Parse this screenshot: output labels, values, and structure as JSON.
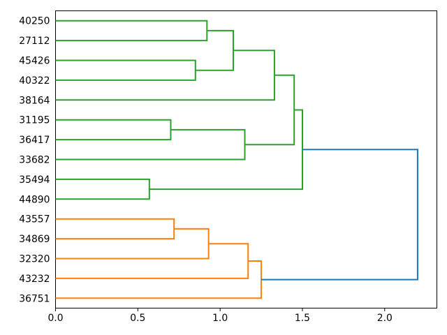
{
  "figure": {
    "background": "#ffffff",
    "title": ""
  },
  "chart_data": {
    "type": "dendrogram",
    "orientation": "right",
    "title": "",
    "xlabel": "",
    "ylabel": "",
    "xlim": [
      0,
      2.317
    ],
    "leaf_axis_range": [
      0,
      150
    ],
    "grid": false,
    "x_ticks": [
      {
        "value": 0.0,
        "label": "0.0"
      },
      {
        "value": 0.5,
        "label": "0.5"
      },
      {
        "value": 1.0,
        "label": "1.0"
      },
      {
        "value": 1.5,
        "label": "1.5"
      },
      {
        "value": 2.0,
        "label": "2.0"
      }
    ],
    "leaves": [
      {
        "label": "40250",
        "position": 145
      },
      {
        "label": "27112",
        "position": 135
      },
      {
        "label": "45426",
        "position": 125
      },
      {
        "label": "40322",
        "position": 115
      },
      {
        "label": "38164",
        "position": 105
      },
      {
        "label": "31195",
        "position": 95
      },
      {
        "label": "36417",
        "position": 85
      },
      {
        "label": "33682",
        "position": 75
      },
      {
        "label": "35494",
        "position": 65
      },
      {
        "label": "44890",
        "position": 55
      },
      {
        "label": "43557",
        "position": 45
      },
      {
        "label": "34869",
        "position": 35
      },
      {
        "label": "32320",
        "position": 25
      },
      {
        "label": "43232",
        "position": 15
      },
      {
        "label": "36751",
        "position": 5
      }
    ],
    "links": [
      {
        "id": "G1",
        "children": [
          "40250",
          "27112"
        ],
        "height": 0.92,
        "color": "#2ca02c"
      },
      {
        "id": "G2",
        "children": [
          "45426",
          "40322"
        ],
        "height": 0.85,
        "color": "#2ca02c"
      },
      {
        "id": "G3",
        "children": [
          "G1",
          "G2"
        ],
        "height": 1.08,
        "color": "#2ca02c"
      },
      {
        "id": "G4",
        "children": [
          "G3",
          "38164"
        ],
        "height": 1.33,
        "color": "#2ca02c"
      },
      {
        "id": "G5",
        "children": [
          "31195",
          "36417"
        ],
        "height": 0.7,
        "color": "#2ca02c"
      },
      {
        "id": "G6",
        "children": [
          "G5",
          "33682"
        ],
        "height": 1.15,
        "color": "#2ca02c"
      },
      {
        "id": "G7",
        "children": [
          "G4",
          "G6"
        ],
        "height": 1.45,
        "color": "#2ca02c"
      },
      {
        "id": "G8",
        "children": [
          "35494",
          "44890"
        ],
        "height": 0.57,
        "color": "#2ca02c"
      },
      {
        "id": "G9",
        "children": [
          "G7",
          "G8"
        ],
        "height": 1.5,
        "color": "#2ca02c"
      },
      {
        "id": "O1",
        "children": [
          "43557",
          "34869"
        ],
        "height": 0.72,
        "color": "#ff7f0e"
      },
      {
        "id": "O2",
        "children": [
          "O1",
          "32320"
        ],
        "height": 0.93,
        "color": "#ff7f0e"
      },
      {
        "id": "O3",
        "children": [
          "O2",
          "43232"
        ],
        "height": 1.17,
        "color": "#ff7f0e"
      },
      {
        "id": "O4",
        "children": [
          "O3",
          "36751"
        ],
        "height": 1.25,
        "color": "#ff7f0e"
      },
      {
        "id": "ROOT",
        "children": [
          "G9",
          "O4"
        ],
        "height": 2.2,
        "color": "#1f77b4"
      }
    ],
    "colors": {
      "cluster_green": "#2ca02c",
      "cluster_orange": "#ff7f0e",
      "root_link": "#1f77b4",
      "axis": "#000000",
      "background": "#ffffff"
    }
  }
}
